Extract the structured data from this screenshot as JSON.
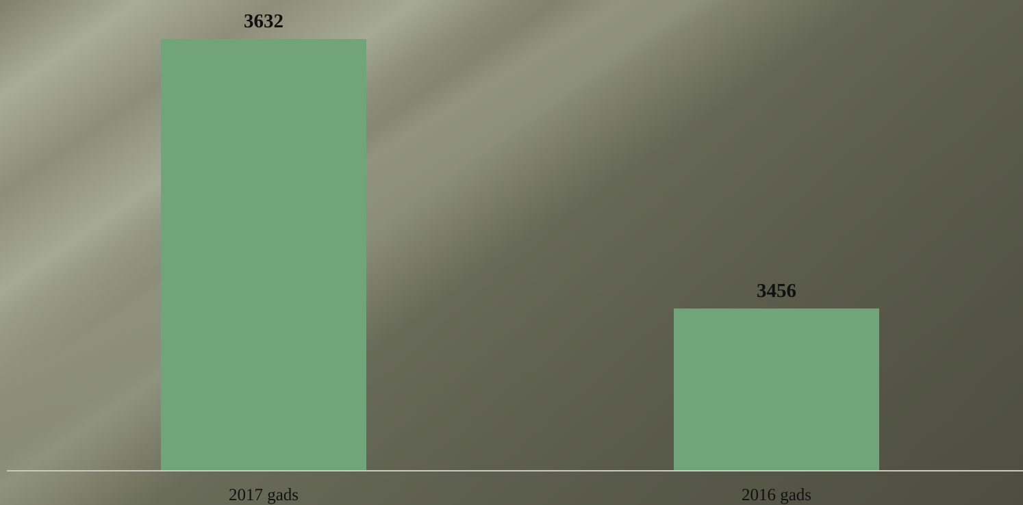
{
  "chart_data": {
    "type": "bar",
    "categories": [
      "2017 gads",
      "2016 gads"
    ],
    "values": [
      3632,
      3456
    ],
    "ylim": [
      3350,
      3650
    ],
    "title": "",
    "xlabel": "",
    "ylabel": "",
    "grid": false,
    "legend": "none",
    "colors": {
      "bar": "#71a478",
      "label": "#111111",
      "axis": "#c9cabd"
    }
  }
}
